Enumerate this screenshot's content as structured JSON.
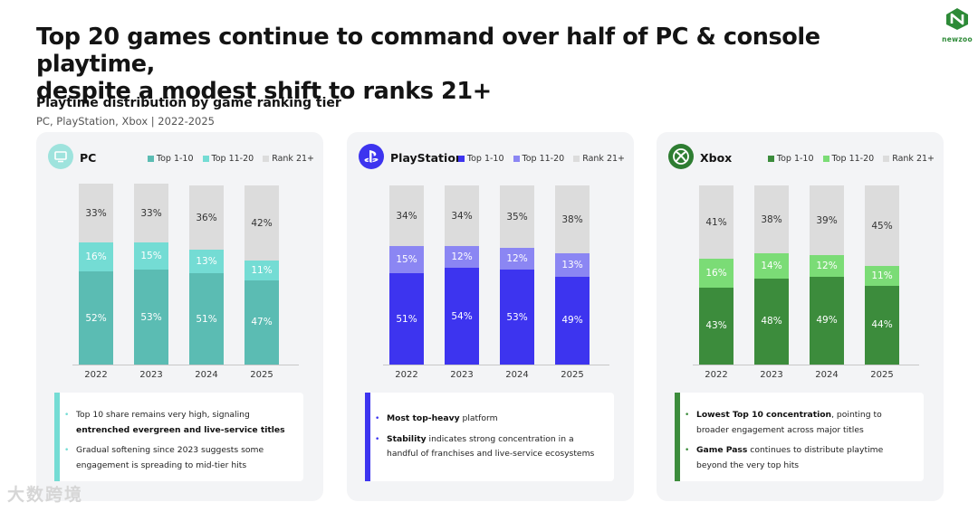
{
  "header": {
    "title_line1": "Top 20 games continue to command over half of PC & console playtime,",
    "title_line2": "despite a modest shift to ranks 21+",
    "logo_text": "newzoo"
  },
  "subtitle": "Playtime distribution by game ranking tier",
  "subtitle2": "PC, PlayStation, Xbox | 2022-2025",
  "watermark": "大数跨境",
  "chart_data": [
    {
      "type": "bar",
      "stacked": true,
      "title": "PC",
      "icon": "monitor-icon",
      "categories": [
        "2022",
        "2023",
        "2024",
        "2025"
      ],
      "series": [
        {
          "name": "Top 1-10",
          "values": [
            52,
            53,
            51,
            47
          ],
          "labels": [
            "52%",
            "53%",
            "51%",
            "47%"
          ],
          "color": "#5bbcb3"
        },
        {
          "name": "Top 11-20",
          "values": [
            16,
            15,
            13,
            11
          ],
          "labels": [
            "16%",
            "15%",
            "13%",
            "11%"
          ],
          "color": "#74dcd4"
        },
        {
          "name": "Rank 21+",
          "values": [
            33,
            33,
            36,
            42
          ],
          "labels": [
            "33%",
            "33%",
            "36%",
            "42%"
          ],
          "color": "#dcdcdc"
        }
      ],
      "accent": "#74dcd4",
      "notes": [
        {
          "plain1": "Top 10 share remains very high, signaling ",
          "bold": "entrenched evergreen and live-service titles",
          "plain2": ""
        },
        {
          "plain1": "Gradual softening since 2023 suggests some engagement is spreading to mid-tier hits",
          "bold": "",
          "plain2": ""
        }
      ]
    },
    {
      "type": "bar",
      "stacked": true,
      "title": "PlayStation",
      "icon": "playstation-icon",
      "categories": [
        "2022",
        "2023",
        "2024",
        "2025"
      ],
      "series": [
        {
          "name": "Top 1-10",
          "values": [
            51,
            54,
            53,
            49
          ],
          "labels": [
            "51%",
            "54%",
            "53%",
            "49%"
          ],
          "color": "#3d34ef"
        },
        {
          "name": "Top 11-20",
          "values": [
            15,
            12,
            12,
            13
          ],
          "labels": [
            "15%",
            "12%",
            "12%",
            "13%"
          ],
          "color": "#8b86f3"
        },
        {
          "name": "Rank 21+",
          "values": [
            34,
            34,
            35,
            38
          ],
          "labels": [
            "34%",
            "34%",
            "35%",
            "38%"
          ],
          "color": "#dcdcdc"
        }
      ],
      "accent": "#3d34ef",
      "notes": [
        {
          "plain1": "",
          "bold": "Most top-heavy",
          "plain2": " platform"
        },
        {
          "plain1": "",
          "bold": "Stability",
          "plain2": " indicates strong concentration in a handful of franchises and live-service ecosystems"
        }
      ]
    },
    {
      "type": "bar",
      "stacked": true,
      "title": "Xbox",
      "icon": "xbox-icon",
      "categories": [
        "2022",
        "2023",
        "2024",
        "2025"
      ],
      "series": [
        {
          "name": "Top 1-10",
          "values": [
            43,
            48,
            49,
            44
          ],
          "labels": [
            "43%",
            "48%",
            "49%",
            "44%"
          ],
          "color": "#3c8c3c"
        },
        {
          "name": "Top 11-20",
          "values": [
            16,
            14,
            12,
            11
          ],
          "labels": [
            "16%",
            "14%",
            "12%",
            "11%"
          ],
          "color": "#7bdc76"
        },
        {
          "name": "Rank 21+",
          "values": [
            41,
            38,
            39,
            45
          ],
          "labels": [
            "41%",
            "38%",
            "39%",
            "45%"
          ],
          "color": "#dcdcdc"
        }
      ],
      "accent": "#3c8c3c",
      "notes": [
        {
          "plain1": "",
          "bold": "Lowest Top 10 concentration",
          "plain2": ", pointing to broader engagement across major titles"
        },
        {
          "plain1": "",
          "bold": "Game Pass",
          "plain2": " continues to distribute playtime beyond the very top hits"
        }
      ]
    }
  ]
}
